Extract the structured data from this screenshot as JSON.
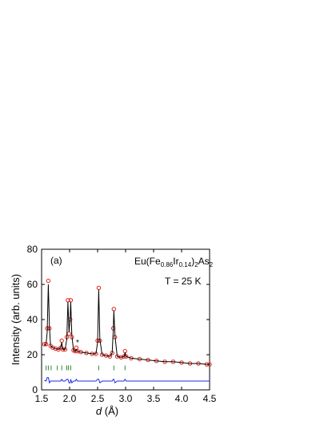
{
  "chart_data": {
    "type": "rietveld",
    "label": "(a)",
    "formula": [
      "Eu(Fe",
      "0.86",
      "Ir",
      "0.14",
      ")",
      "2",
      "As",
      "2"
    ],
    "temperature": "T = 25 K",
    "impurity_marker": "*",
    "xlabel_var": "d",
    "xlabel_unit": "(Å)",
    "ylabel": "Intensity (arb. units)",
    "xlim": [
      1.5,
      4.5
    ],
    "ylim": [
      0,
      80
    ],
    "xticks": [
      1.5,
      {
        "value": 2,
        "label": "2.0"
      },
      2.5,
      {
        "value": 3,
        "label": "3.0"
      },
      3.5,
      {
        "value": 4,
        "label": "4.0"
      },
      4.5
    ],
    "yticks": [
      0,
      20,
      40,
      60,
      80
    ],
    "x": [
      1.55,
      1.58,
      1.6,
      1.62,
      1.64,
      1.66,
      1.7,
      1.75,
      1.8,
      1.84,
      1.86,
      1.88,
      1.92,
      1.95,
      1.97,
      1.99,
      2.01,
      2.02,
      2.04,
      2.07,
      2.1,
      2.12,
      2.14,
      2.2,
      2.3,
      2.4,
      2.47,
      2.5,
      2.52,
      2.54,
      2.58,
      2.65,
      2.72,
      2.76,
      2.78,
      2.79,
      2.81,
      2.85,
      2.92,
      2.97,
      2.99,
      3.01,
      3.1,
      3.25,
      3.4,
      3.55,
      3.7,
      3.85,
      4.0,
      4.15,
      4.3,
      4.45,
      4.5
    ],
    "series": [
      {
        "style": "circles",
        "color": "#e0201c",
        "values": [
          26,
          26,
          35,
          62,
          35,
          25,
          24,
          23.5,
          23,
          24,
          28,
          23,
          23,
          30,
          51,
          32,
          40,
          51,
          30,
          22.5,
          22,
          24,
          22,
          21.5,
          21,
          20.5,
          20.5,
          28,
          58,
          28,
          20,
          19.5,
          19,
          21,
          35,
          46,
          30,
          19,
          18.5,
          19,
          22,
          19,
          18,
          17.5,
          17,
          16.5,
          16,
          16,
          15.5,
          15,
          15,
          14.5,
          14.5
        ]
      },
      {
        "style": "line",
        "color": "#000000",
        "values": [
          25.5,
          26,
          33,
          60,
          36,
          25,
          24,
          23.5,
          23,
          24,
          27,
          23,
          23,
          29,
          50,
          33,
          41,
          50,
          31,
          22.5,
          22,
          23,
          22,
          21.5,
          21,
          20.5,
          20.5,
          27,
          57,
          29,
          20,
          19.5,
          19,
          21,
          34,
          45,
          31,
          19,
          18.5,
          19,
          21,
          19,
          18,
          17.5,
          17,
          16.5,
          16,
          16,
          15.5,
          15,
          15,
          14.5,
          14.5
        ]
      },
      {
        "style": "line",
        "color": "#1c2ee6",
        "values": [
          5.5,
          5,
          7,
          7,
          4,
          5,
          5,
          5,
          5,
          5,
          6,
          5,
          5,
          6,
          6,
          4,
          4,
          6,
          4,
          5,
          5,
          6,
          5,
          5,
          5,
          5,
          5,
          6,
          6,
          4,
          5,
          5,
          5,
          5,
          6,
          6,
          4,
          5,
          5,
          5,
          6,
          5,
          5,
          5,
          5,
          5,
          5,
          5,
          5,
          5,
          5,
          5,
          5
        ]
      },
      {
        "style": "ticks",
        "color": "#2e8b2e",
        "x": [
          1.58,
          1.62,
          1.67,
          1.78,
          1.86,
          1.95,
          1.98,
          2.02,
          2.52,
          2.79,
          2.99
        ],
        "values": [
          12.5,
          12.5,
          12.5,
          12.5,
          12.5,
          12.5,
          12.5,
          12.5,
          12.5,
          12.5,
          12.5
        ]
      }
    ]
  }
}
